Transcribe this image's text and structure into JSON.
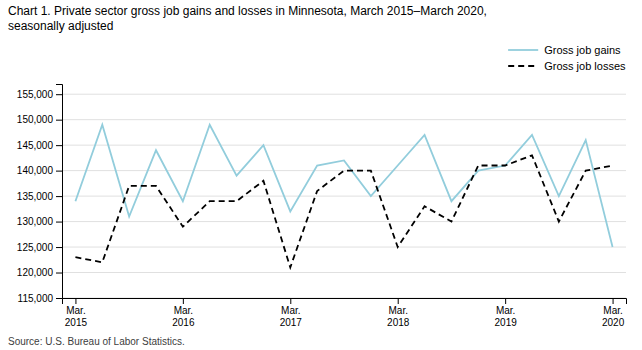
{
  "chart_data": {
    "type": "line",
    "title": "Chart 1. Private sector gross job gains and losses  in Minnesota, March 2015–March 2020,",
    "subtitle": "seasonally adjusted",
    "source": "Source: U.S. Bureau of Labor Statistics.",
    "categories": [
      "Mar.\n2015",
      null,
      null,
      null,
      "Mar.\n2016",
      null,
      null,
      null,
      "Mar.\n2017",
      null,
      null,
      null,
      "Mar.\n2018",
      null,
      null,
      null,
      "Mar.\n2019",
      null,
      null,
      null,
      "Mar.\n2020"
    ],
    "series": [
      {
        "name": "Gross job gains",
        "color": "#92CDDC",
        "line_style": "solid",
        "values": [
          134000,
          149000,
          131000,
          144000,
          134000,
          149000,
          139000,
          145000,
          132000,
          141000,
          142000,
          135000,
          141000,
          147000,
          134000,
          140000,
          141000,
          147000,
          135000,
          146000,
          125000
        ]
      },
      {
        "name": "Gross job losses",
        "color": "#000000",
        "line_style": "dashed",
        "values": [
          123000,
          122000,
          137000,
          137000,
          129000,
          134000,
          134000,
          138000,
          121000,
          136000,
          140000,
          140000,
          125000,
          133000,
          130000,
          141000,
          141000,
          143000,
          130000,
          140000,
          141000
        ]
      }
    ],
    "ylim": [
      115000,
      157000
    ],
    "yticks": [
      {
        "value": 115000,
        "label": "115,000"
      },
      {
        "value": 120000,
        "label": "120,000"
      },
      {
        "value": 125000,
        "label": "125,000"
      },
      {
        "value": 130000,
        "label": "130,000"
      },
      {
        "value": 135000,
        "label": "135,000"
      },
      {
        "value": 140000,
        "label": "140,000"
      },
      {
        "value": 145000,
        "label": "145,000"
      },
      {
        "value": 150000,
        "label": "150,000"
      },
      {
        "value": 155000,
        "label": "155,000"
      }
    ],
    "grid": true,
    "legend": "upper right"
  }
}
